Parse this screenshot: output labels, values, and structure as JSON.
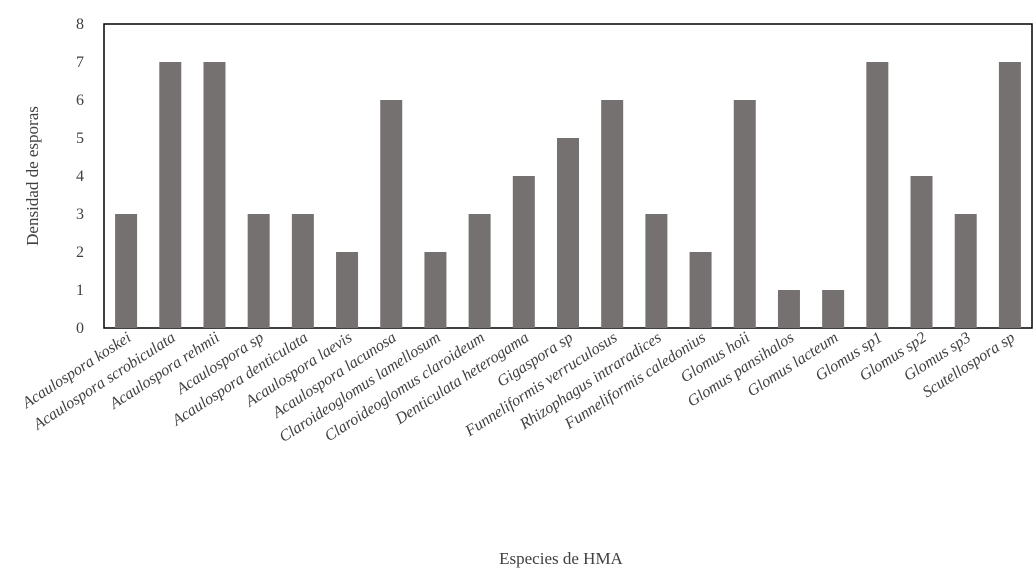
{
  "chart_data": {
    "type": "bar",
    "title": "",
    "xlabel": "Especies de HMA",
    "ylabel": "Densidad de esporas",
    "ylim": [
      0,
      8
    ],
    "yticks": [
      0,
      1,
      2,
      3,
      4,
      5,
      6,
      7,
      8
    ],
    "grid": false,
    "bar_color": "#767171",
    "categories": [
      "Acaulospora koskei",
      "Acaulospora scrobiculata",
      "Acaulospora rehmii",
      "Acaulospora sp",
      "Acaulospora denticulata",
      "Acaulospora laevis",
      "Acaulospora lacunosa",
      "Claroideoglomus lamellosum",
      "Claroideoglomus claroideum",
      "Denticulata heterogama",
      "Gigaspora sp",
      "Funneliformis verruculosus",
      "Rhizophagus intraradices",
      "Funneliformis caledonius",
      "Glomus hoii",
      "Glomus pansihalos",
      "Glomus lacteum",
      "Glomus sp1",
      "Glomus sp2",
      "Glomus sp3",
      "Scutellospora sp"
    ],
    "values": [
      3,
      7,
      7,
      3,
      3,
      2,
      6,
      2,
      3,
      4,
      5,
      6,
      3,
      2,
      6,
      1,
      1,
      7,
      4,
      3,
      7
    ]
  }
}
